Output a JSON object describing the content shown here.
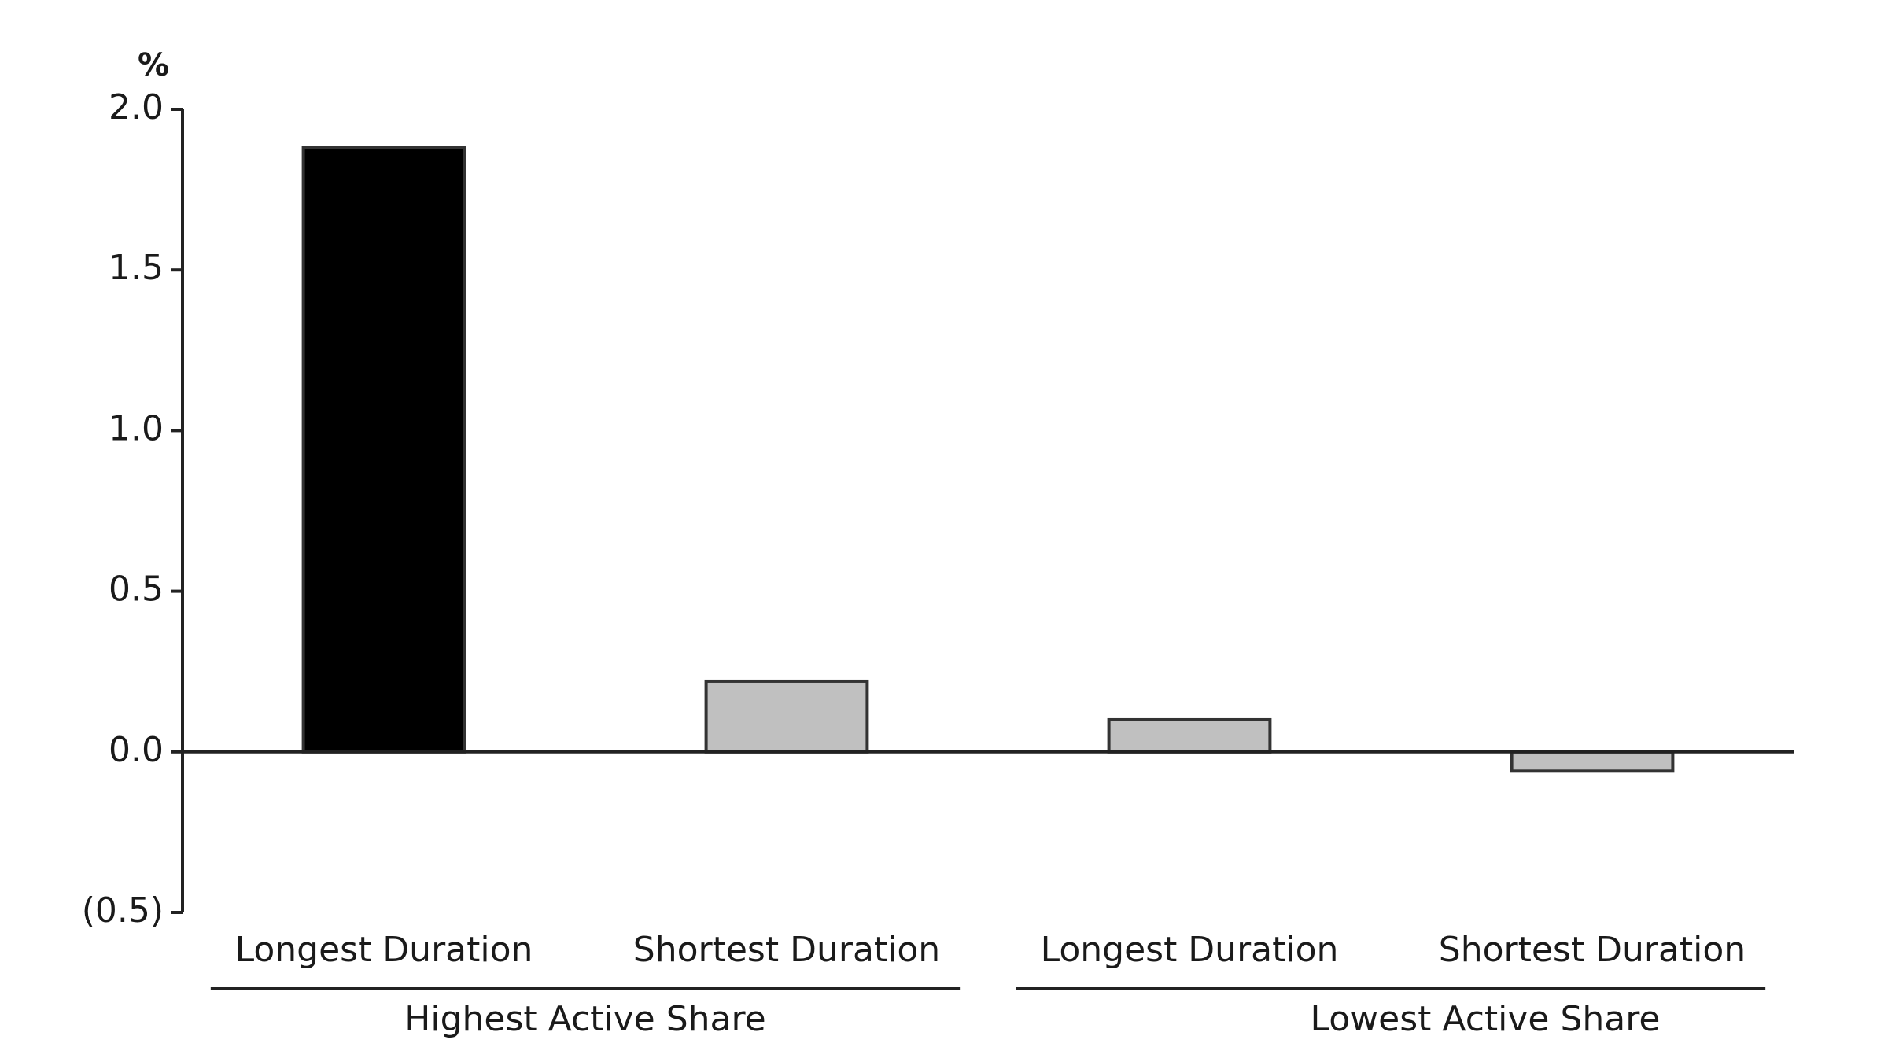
{
  "chart_data": {
    "type": "bar",
    "y_unit_label": "%",
    "groups": [
      {
        "name": "Highest Active Share",
        "categories": [
          "Longest Duration",
          "Shortest Duration"
        ],
        "values": [
          1.88,
          0.22
        ],
        "colors": [
          "#000000",
          "#c0c0c0"
        ]
      },
      {
        "name": "Lowest Active Share",
        "categories": [
          "Longest Duration",
          "Shortest Duration"
        ],
        "values": [
          0.1,
          -0.06
        ],
        "colors": [
          "#c0c0c0",
          "#c0c0c0"
        ]
      }
    ],
    "ylim": [
      -0.5,
      2.0
    ],
    "yticks": [
      {
        "value": -0.5,
        "label": "(0.5)"
      },
      {
        "value": 0,
        "label": "0.0"
      },
      0.5,
      {
        "value": 1,
        "label": "1.0"
      },
      1.5,
      {
        "value": 2,
        "label": "2.0"
      }
    ],
    "grid": false
  }
}
